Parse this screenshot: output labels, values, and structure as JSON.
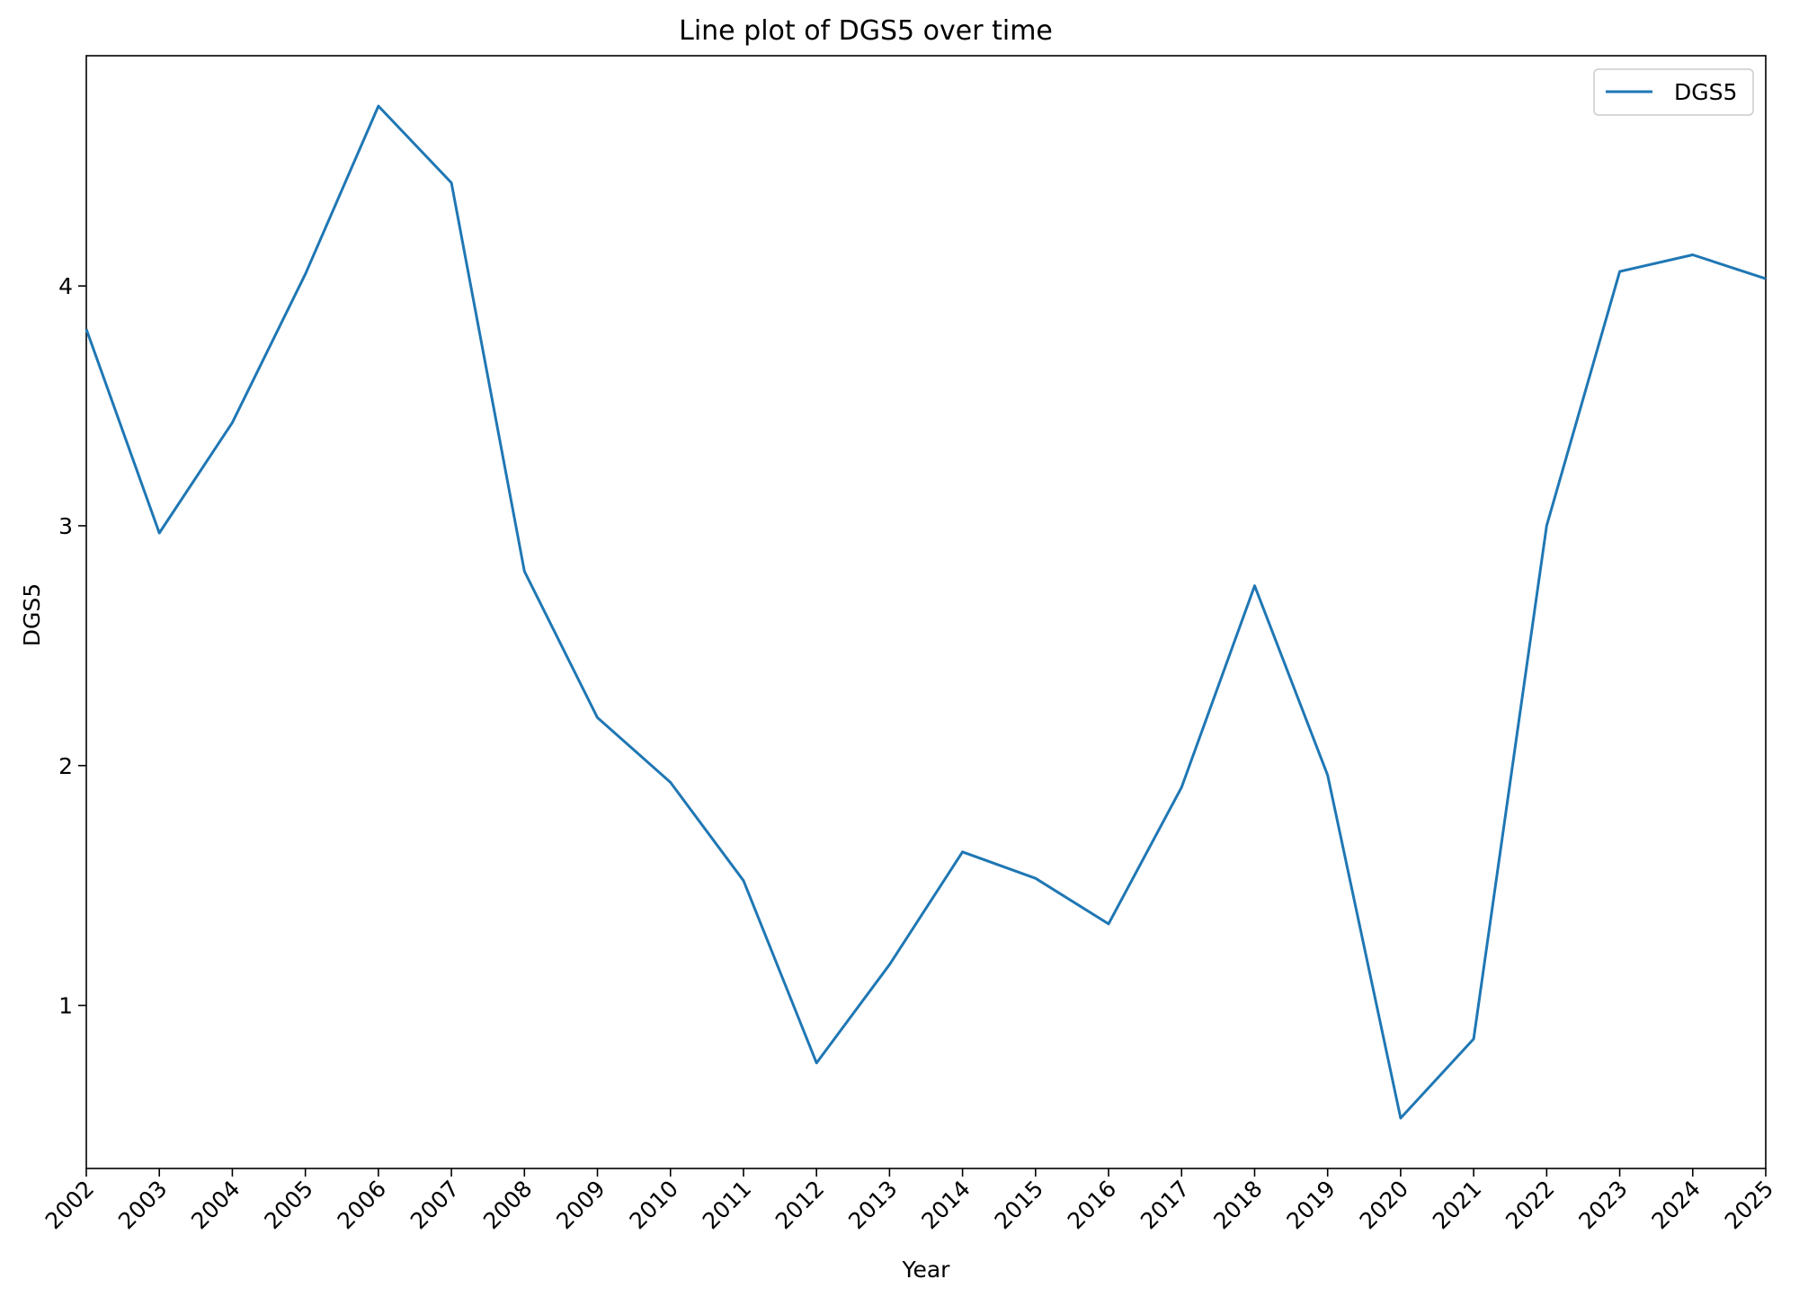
{
  "chart_data": {
    "type": "line",
    "title": "Line plot of DGS5 over time",
    "xlabel": "Year",
    "ylabel": "DGS5",
    "x": [
      "2002",
      "2003",
      "2004",
      "2005",
      "2006",
      "2007",
      "2008",
      "2009",
      "2010",
      "2011",
      "2012",
      "2013",
      "2014",
      "2015",
      "2016",
      "2017",
      "2018",
      "2019",
      "2020",
      "2021",
      "2022",
      "2023",
      "2024",
      "2025"
    ],
    "series": [
      {
        "name": "DGS5",
        "color": "#1f77b4",
        "values": [
          3.82,
          2.97,
          3.43,
          4.05,
          4.75,
          4.43,
          2.81,
          2.2,
          1.93,
          1.52,
          0.76,
          1.17,
          1.64,
          1.53,
          1.34,
          1.91,
          2.75,
          1.96,
          0.53,
          0.86,
          3.0,
          4.06,
          4.13,
          4.03
        ]
      }
    ],
    "yticks": [
      1,
      2,
      3,
      4
    ],
    "ylim": [
      0.32,
      4.96
    ],
    "grid": false,
    "legend_position": "upper right"
  }
}
